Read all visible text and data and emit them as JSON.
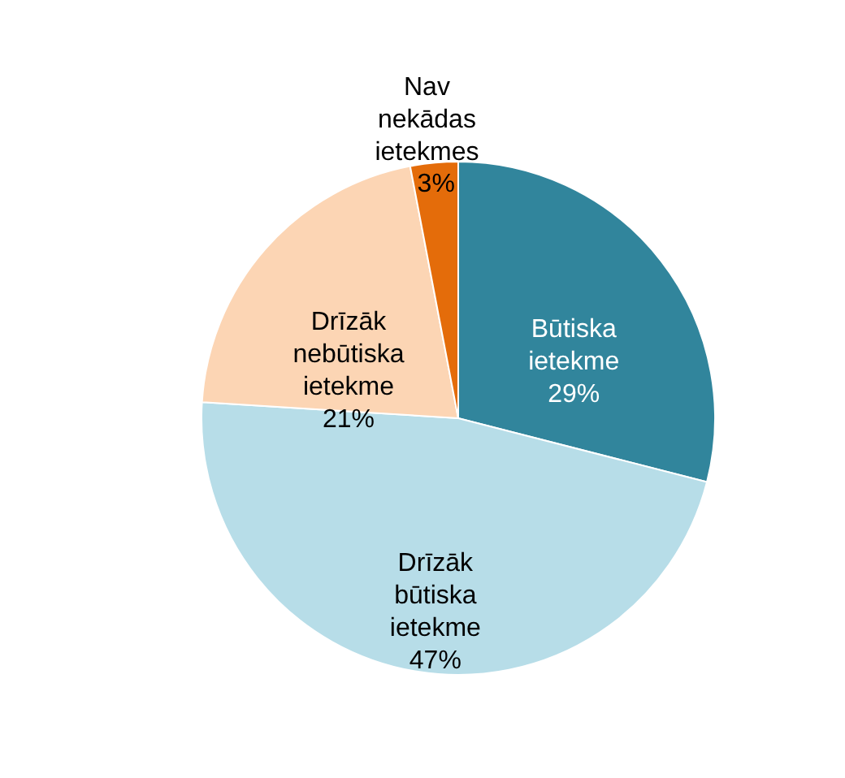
{
  "chart_data": {
    "type": "pie",
    "categories": [
      "Būtiska ietekme",
      "Drīzāk būtiska ietekme",
      "Drīzāk nebūtiska ietekme",
      "Nav nekādas ietekmes"
    ],
    "values": [
      29,
      47,
      21,
      3
    ],
    "value_labels": [
      "29%",
      "47%",
      "21%",
      "3%"
    ],
    "colors": [
      "#31859c",
      "#b7dde8",
      "#fcd5b4",
      "#e46c0a"
    ],
    "legend": false
  }
}
